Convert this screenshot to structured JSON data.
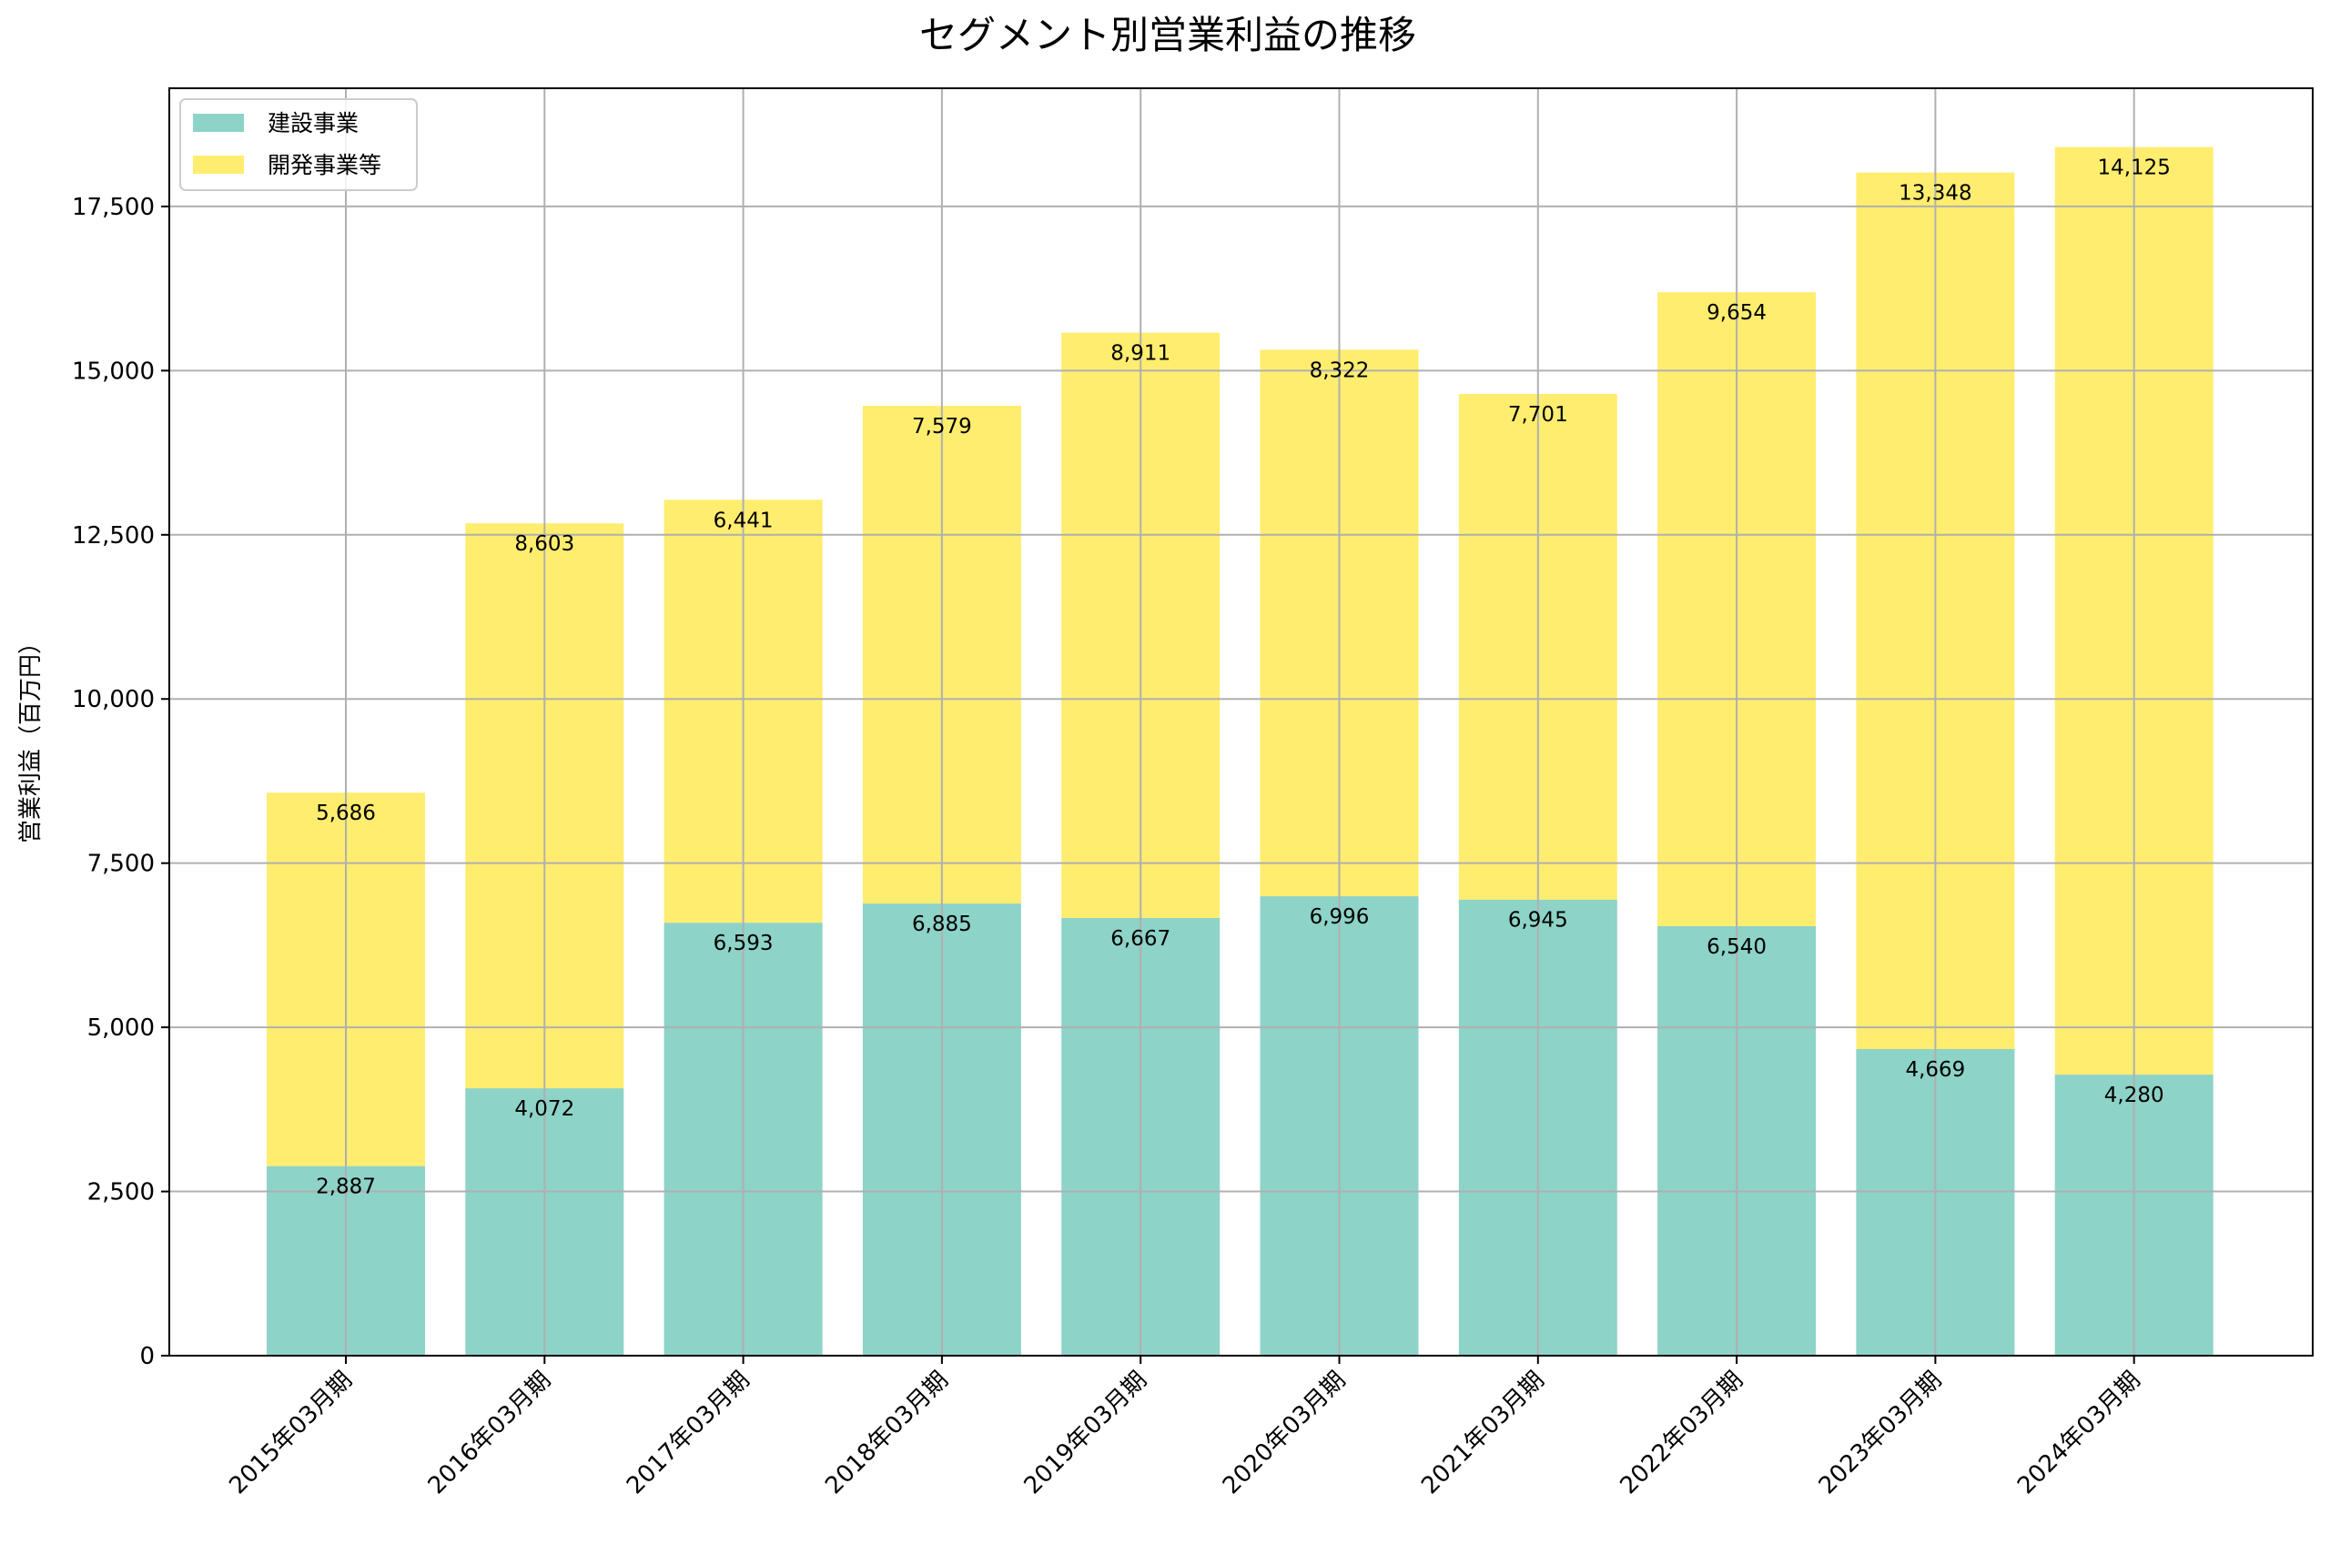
{
  "chart_data": {
    "type": "bar",
    "stacked": true,
    "title": "セグメント別営業利益の推移",
    "xlabel": "",
    "ylabel": "営業利益（百万円）",
    "categories": [
      "2015年03月期",
      "2016年03月期",
      "2017年03月期",
      "2018年03月期",
      "2019年03月期",
      "2020年03月期",
      "2021年03月期",
      "2022年03月期",
      "2023年03月期",
      "2024年03月期"
    ],
    "series": [
      {
        "name": "建設事業",
        "color": "#8DD3C7",
        "values": [
          2887,
          4072,
          6593,
          6885,
          6667,
          6996,
          6945,
          6540,
          4669,
          4280
        ]
      },
      {
        "name": "開発事業等",
        "color": "#FFED6F",
        "values": [
          5686,
          8603,
          6441,
          7579,
          8911,
          8322,
          7701,
          9654,
          13348,
          14125
        ]
      }
    ],
    "ylim": [
      0,
      19300
    ],
    "yticks": [
      0,
      2500,
      5000,
      7500,
      10000,
      12500,
      15000,
      17500
    ],
    "grid": true,
    "legend_position": "top-left"
  }
}
